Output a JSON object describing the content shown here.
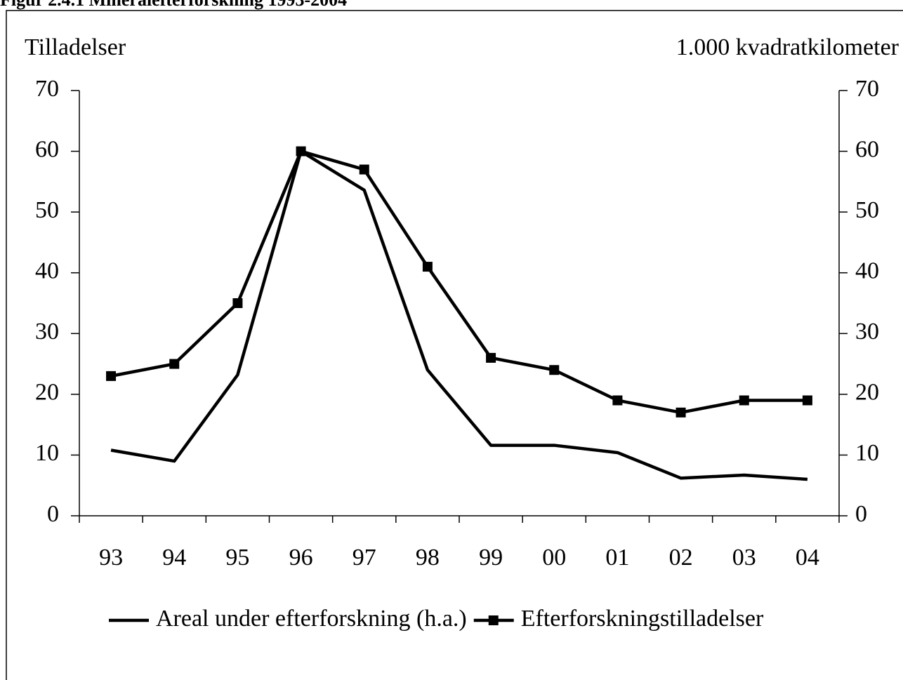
{
  "chart_data": {
    "type": "line",
    "title": "Figur 2.4.1 Mineralefterforskning 1993-2004",
    "y_label": "Tilladelser",
    "y2_label": "1.000 kvadratkilometer",
    "categories": [
      "93",
      "94",
      "95",
      "96",
      "97",
      "98",
      "99",
      "00",
      "01",
      "02",
      "03",
      "04"
    ],
    "series": [
      {
        "name": "Areal under efterforskning (h.a.)",
        "color": "#000000",
        "axis": "y2",
        "marker": "none",
        "values": [
          10.8,
          9.0,
          23.2,
          60,
          53.6,
          24,
          11.6,
          11.6,
          10.4,
          6.2,
          6.7,
          6.0
        ]
      },
      {
        "name": "Efterforskningstilladelser",
        "color": "#000000",
        "axis": "y",
        "marker": "square",
        "values": [
          23,
          25,
          35,
          60,
          57,
          41,
          26,
          24,
          19,
          17,
          19,
          19
        ]
      }
    ],
    "ylim": [
      0,
      70
    ],
    "yticks": [
      0,
      10,
      20,
      30,
      40,
      50,
      60,
      70
    ],
    "y2lim": [
      0,
      70
    ],
    "y2ticks": [
      0,
      10,
      20,
      30,
      40,
      50,
      60,
      70
    ],
    "grid": false,
    "legend": "bottom"
  }
}
